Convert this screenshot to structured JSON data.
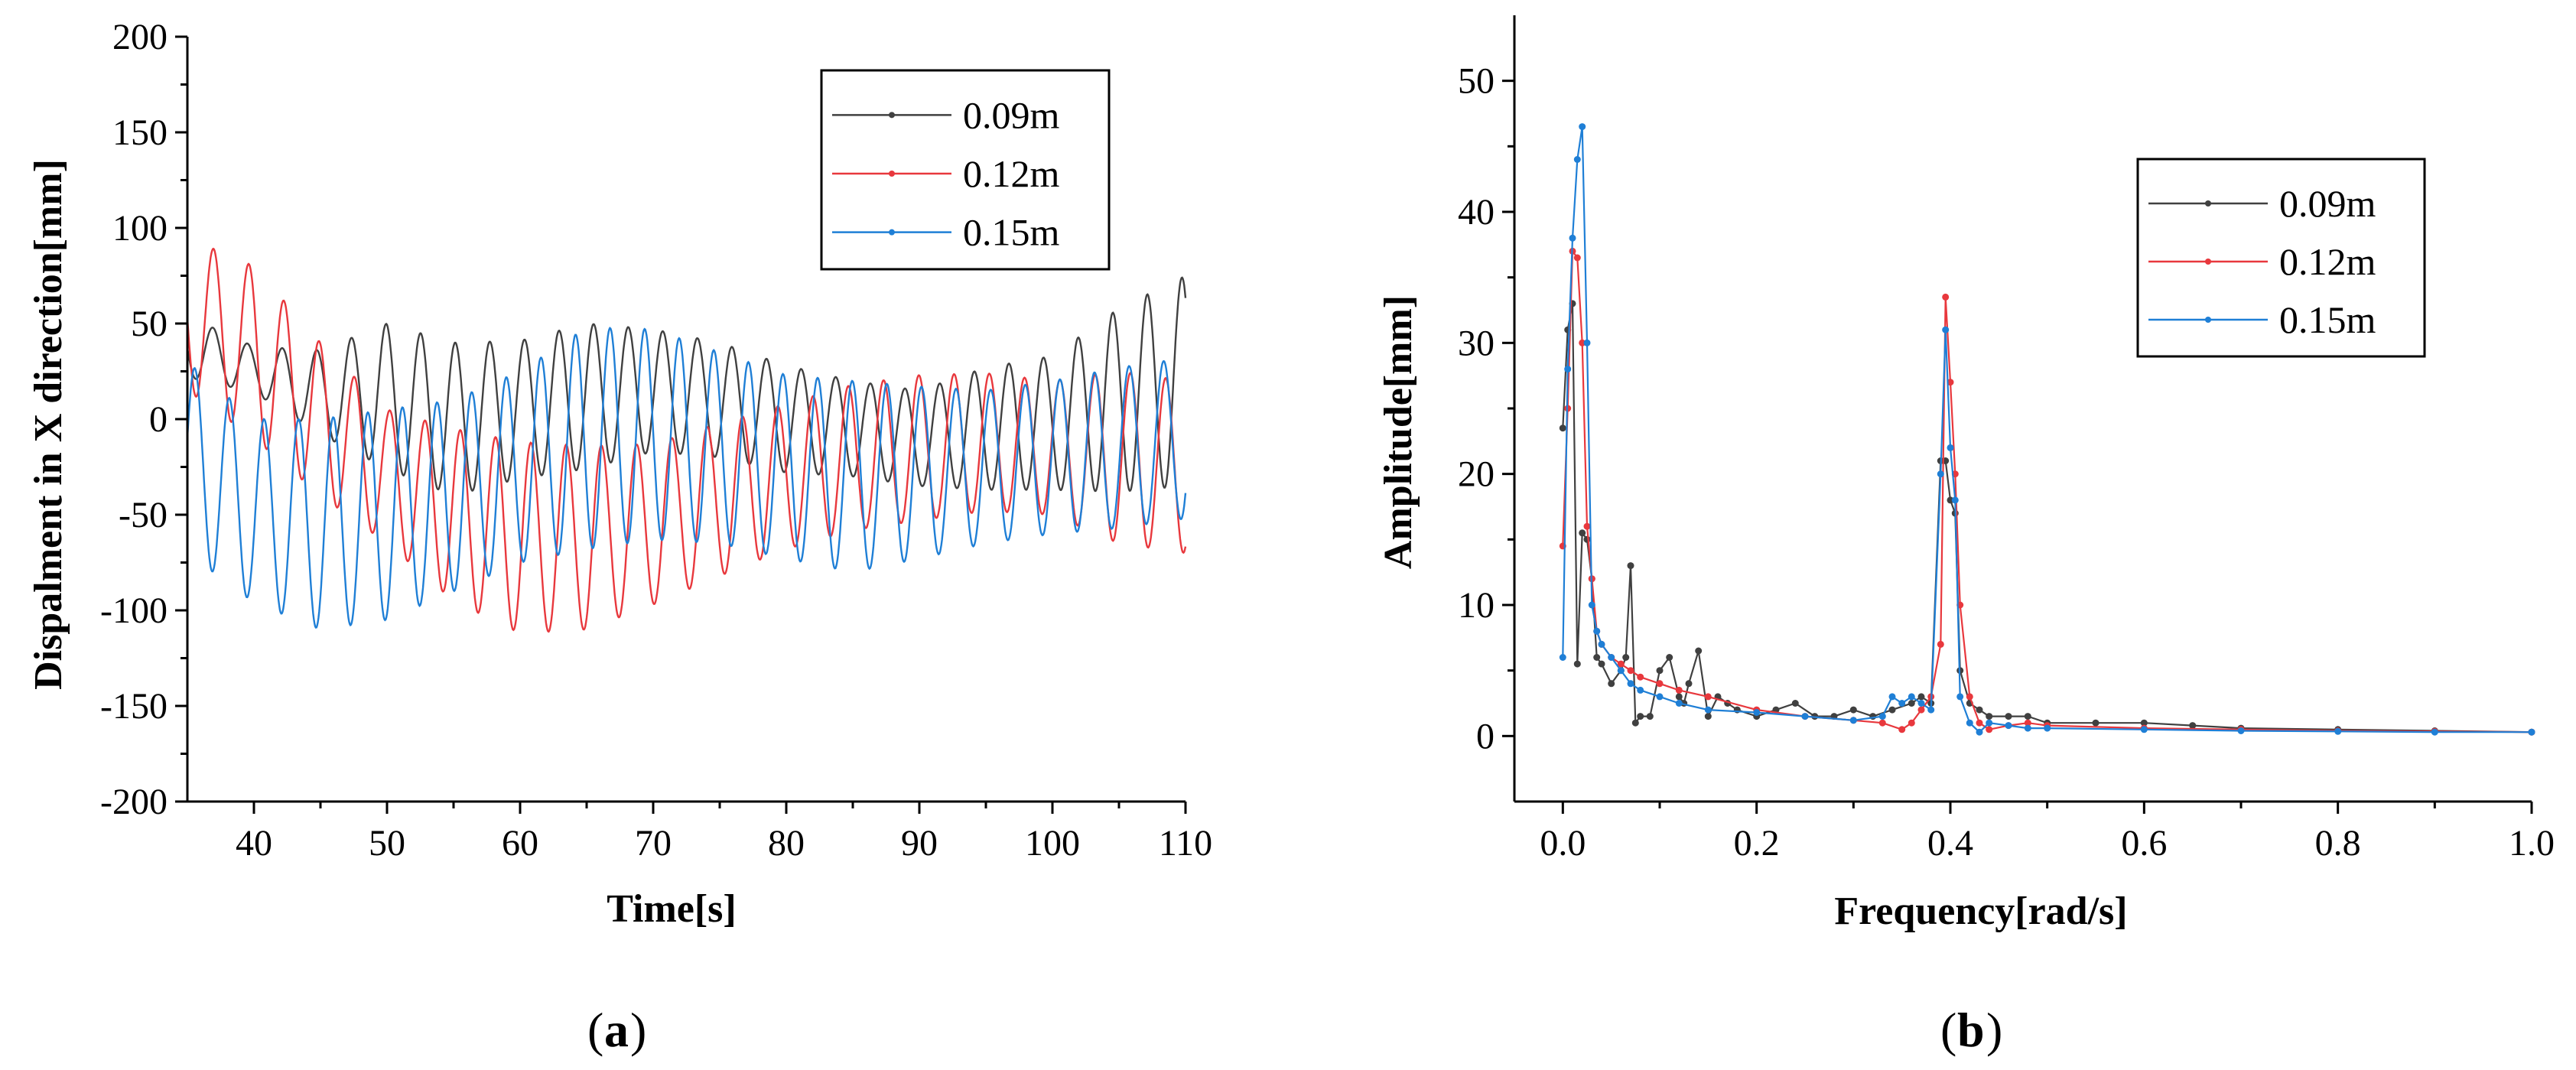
{
  "chart_data": [
    {
      "type": "line",
      "panel_label": "a",
      "xlabel": "Time[s]",
      "ylabel": "Dispalment in X direction[mm]",
      "xlim": [
        35,
        110
      ],
      "ylim": [
        -200,
        200
      ],
      "xticks": [
        40,
        50,
        60,
        70,
        80,
        90,
        100,
        110
      ],
      "yticks": [
        -200,
        -150,
        -100,
        -50,
        0,
        50,
        100,
        150,
        200
      ],
      "legend_position": "top-right",
      "series": [
        {
          "name": "0.09m",
          "color": "#404040",
          "period": 2.6,
          "x": [
            35,
            40,
            45,
            50,
            55,
            60,
            65,
            70,
            75,
            80,
            85,
            90,
            95,
            100,
            105,
            110
          ],
          "mean": [
            38,
            26,
            14,
            12,
            0,
            5,
            12,
            15,
            10,
            0,
            -5,
            -10,
            -5,
            -2,
            10,
            20
          ],
          "amplitude": [
            16,
            12,
            22,
            38,
            40,
            36,
            38,
            32,
            30,
            28,
            25,
            25,
            32,
            35,
            48,
            55
          ]
        },
        {
          "name": "0.12m",
          "color": "#e8383d",
          "period": 2.65,
          "x": [
            35,
            40,
            45,
            50,
            55,
            60,
            65,
            70,
            75,
            80,
            85,
            90,
            95,
            100,
            105,
            110
          ],
          "mean": [
            55,
            35,
            0,
            -30,
            -50,
            -62,
            -62,
            -55,
            -42,
            -30,
            -20,
            -15,
            -12,
            -15,
            -20,
            -25
          ],
          "amplitude": [
            40,
            45,
            40,
            35,
            45,
            50,
            48,
            42,
            40,
            38,
            38,
            38,
            36,
            35,
            45,
            45
          ]
        },
        {
          "name": "0.15m",
          "color": "#1f7fd6",
          "period": 2.6,
          "x": [
            35,
            40,
            45,
            50,
            55,
            60,
            65,
            70,
            75,
            80,
            85,
            90,
            95,
            100,
            105,
            110
          ],
          "mean": [
            -20,
            -48,
            -55,
            -50,
            -40,
            -25,
            -10,
            -8,
            -15,
            -25,
            -30,
            -28,
            -25,
            -20,
            -15,
            -10
          ],
          "amplitude": [
            50,
            48,
            55,
            55,
            50,
            50,
            58,
            55,
            50,
            48,
            50,
            45,
            40,
            40,
            42,
            42
          ]
        }
      ]
    },
    {
      "type": "line",
      "panel_label": "b",
      "xlabel": "Frequency[rad/s]",
      "ylabel": "Amplitude[mm]",
      "xlim": [
        -0.05,
        1.0
      ],
      "ylim": [
        -5,
        55
      ],
      "xticks": [
        0.0,
        0.2,
        0.4,
        0.6,
        0.8,
        1.0
      ],
      "xtick_labels": [
        "0.0",
        "0.2",
        "0.4",
        "0.6",
        "0.8",
        "1.0"
      ],
      "yticks": [
        0,
        10,
        20,
        30,
        40,
        50
      ],
      "legend_position": "top-right",
      "series": [
        {
          "name": "0.09m",
          "color": "#404040",
          "x": [
            0.0,
            0.005,
            0.01,
            0.015,
            0.02,
            0.025,
            0.03,
            0.035,
            0.04,
            0.05,
            0.06,
            0.065,
            0.07,
            0.075,
            0.08,
            0.09,
            0.1,
            0.11,
            0.12,
            0.125,
            0.13,
            0.14,
            0.15,
            0.16,
            0.17,
            0.18,
            0.2,
            0.22,
            0.24,
            0.26,
            0.28,
            0.3,
            0.32,
            0.34,
            0.36,
            0.37,
            0.38,
            0.39,
            0.395,
            0.4,
            0.405,
            0.41,
            0.42,
            0.43,
            0.44,
            0.46,
            0.48,
            0.5,
            0.55,
            0.6,
            0.65,
            0.7,
            0.8,
            0.9,
            1.0
          ],
          "y": [
            23.5,
            31,
            33,
            5.5,
            15.5,
            15,
            12,
            6,
            5.5,
            4,
            5,
            6,
            13,
            1,
            1.5,
            1.5,
            5,
            6,
            3,
            2.5,
            4,
            6.5,
            1.5,
            3,
            2.5,
            2,
            1.5,
            2,
            2.5,
            1.5,
            1.5,
            2,
            1.5,
            2,
            2.5,
            3,
            2.5,
            21,
            21,
            18,
            17,
            5,
            2.5,
            2,
            1.5,
            1.5,
            1.5,
            1,
            1,
            1,
            0.8,
            0.6,
            0.5,
            0.4,
            0.3
          ]
        },
        {
          "name": "0.12m",
          "color": "#e8383d",
          "x": [
            0.0,
            0.005,
            0.01,
            0.015,
            0.02,
            0.025,
            0.03,
            0.035,
            0.04,
            0.05,
            0.06,
            0.07,
            0.08,
            0.1,
            0.12,
            0.15,
            0.2,
            0.25,
            0.3,
            0.33,
            0.35,
            0.36,
            0.37,
            0.38,
            0.39,
            0.395,
            0.4,
            0.405,
            0.41,
            0.42,
            0.43,
            0.44,
            0.46,
            0.48,
            0.5,
            0.6,
            0.7,
            0.8,
            0.9,
            1.0
          ],
          "y": [
            14.5,
            25,
            37,
            36.5,
            30,
            16,
            12,
            8,
            7,
            6,
            5.5,
            5,
            4.5,
            4,
            3.5,
            3,
            2,
            1.5,
            1.2,
            1,
            0.5,
            1,
            2,
            3,
            7,
            33.5,
            27,
            20,
            10,
            3,
            1,
            0.5,
            0.8,
            1,
            0.8,
            0.6,
            0.5,
            0.4,
            0.35,
            0.3
          ]
        },
        {
          "name": "0.15m",
          "color": "#1f7fd6",
          "x": [
            0.0,
            0.005,
            0.01,
            0.015,
            0.02,
            0.025,
            0.03,
            0.035,
            0.04,
            0.05,
            0.06,
            0.07,
            0.08,
            0.1,
            0.12,
            0.15,
            0.2,
            0.25,
            0.3,
            0.33,
            0.34,
            0.35,
            0.36,
            0.37,
            0.38,
            0.39,
            0.395,
            0.4,
            0.405,
            0.41,
            0.42,
            0.43,
            0.44,
            0.46,
            0.48,
            0.5,
            0.6,
            0.7,
            0.8,
            0.9,
            1.0
          ],
          "y": [
            6,
            28,
            38,
            44,
            46.5,
            30,
            10,
            8,
            7,
            6,
            5,
            4,
            3.5,
            3,
            2.5,
            2,
            1.8,
            1.5,
            1.2,
            1.5,
            3,
            2.5,
            3,
            2.5,
            2,
            20,
            31,
            22,
            18,
            3,
            1,
            0.3,
            1,
            0.8,
            0.6,
            0.6,
            0.5,
            0.4,
            0.35,
            0.3,
            0.3
          ]
        }
      ]
    }
  ]
}
